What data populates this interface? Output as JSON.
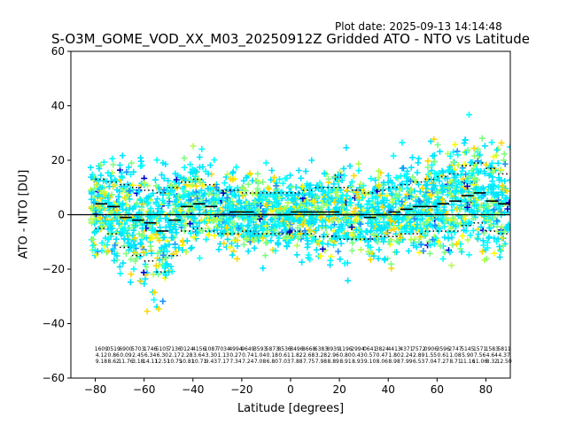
{
  "chart_data": {
    "type": "scatter",
    "plot_date": "Plot date: 2025-09-13 14:14:48",
    "title": "S-O3M_GOME_VOD_XX_M03_20250912Z Gridded ATO - NTO vs Latitude",
    "xlabel": "Latitude [degrees]",
    "ylabel": "ATO - NTO [DU]",
    "xlim": [
      -90,
      90
    ],
    "ylim": [
      -60,
      60
    ],
    "xticks": [
      -80,
      -60,
      -40,
      -20,
      0,
      20,
      40,
      60,
      80
    ],
    "yticks": [
      -60,
      -40,
      -20,
      0,
      20,
      40,
      60
    ],
    "reference_line_y": 0,
    "marker": "+",
    "point_colors": [
      "#00e5ff",
      "#00ffff",
      "#7fff7f",
      "#b2ff4c",
      "#ffd700",
      "#ffff00",
      "#1e90ff",
      "#0000cd"
    ],
    "lat_bins": [
      -80,
      -75,
      -70,
      -65,
      -60,
      -55,
      -50,
      -45,
      -40,
      -35,
      -30,
      -25,
      -20,
      -15,
      -10,
      -5,
      0,
      5,
      10,
      15,
      20,
      25,
      30,
      35,
      40,
      45,
      50,
      55,
      60,
      65,
      70,
      75,
      80,
      85,
      90
    ],
    "bin_mean": [
      4,
      3,
      -1,
      -2,
      -3,
      -6,
      -2,
      3,
      4,
      3,
      0,
      1,
      1,
      0,
      0,
      0,
      1,
      1,
      1,
      1,
      0,
      0,
      -1,
      0,
      1,
      2,
      3,
      3,
      4,
      5,
      7,
      8,
      5,
      4
    ],
    "bin_upper_sigma": [
      13,
      12,
      11,
      10,
      9,
      8,
      10,
      12,
      13,
      11,
      9,
      9,
      8,
      8,
      8,
      8,
      8,
      9,
      10,
      10,
      10,
      9,
      8,
      9,
      10,
      11,
      12,
      13,
      14,
      15,
      18,
      19,
      17,
      15
    ],
    "bin_lower_sigma": [
      -5,
      -7,
      -12,
      -15,
      -17,
      -21,
      -15,
      -6,
      -5,
      -6,
      -7,
      -7,
      -6,
      -7,
      -7,
      -7,
      -6,
      -7,
      -8,
      -8,
      -9,
      -9,
      -9,
      -8,
      -8,
      -7,
      -7,
      -6,
      -6,
      -6,
      -4,
      -3,
      -6,
      -7
    ],
    "bin_stat_labels": [
      [
        "1609",
        "4.12",
        "9.18"
      ],
      [
        "0519",
        "0.86",
        "8.62"
      ],
      [
        "6900",
        "0.09",
        "11.76"
      ],
      [
        "5703",
        "2.45",
        "3.18"
      ],
      [
        "1746",
        "6.34",
        "14.11"
      ],
      [
        "5105",
        "6.30",
        "12.51"
      ],
      [
        "7136",
        "2.17",
        "10.75"
      ],
      [
        "0124",
        "2.28",
        "10.81"
      ],
      [
        "4156",
        "3.64",
        "10.71"
      ],
      [
        "1087",
        "3.30",
        "9.43"
      ],
      [
        "7034",
        "1.13",
        "7.17"
      ],
      [
        "4994",
        "0.27",
        "7.34"
      ],
      [
        "9649",
        "0.74",
        "7.24"
      ],
      [
        "3593",
        "1.04",
        "7.08"
      ],
      [
        "5873",
        "0.18",
        "6.80"
      ],
      [
        "8536",
        "0.61",
        "7.03"
      ],
      [
        "8496",
        "1.82",
        "7.88"
      ],
      [
        "8668",
        "2.68",
        "7.75"
      ],
      [
        "6383",
        "3.28",
        "7.98"
      ],
      [
        "8939",
        "2.96",
        "8.89"
      ],
      [
        "1196",
        "0.80",
        "8.91"
      ],
      [
        "2994",
        "0.43",
        "8.93"
      ],
      [
        "0641",
        "0.57",
        "9.10"
      ],
      [
        "3824",
        "0.47",
        "8.06"
      ],
      [
        "4413",
        "1.80",
        "8.98"
      ],
      [
        "4371",
        "2.24",
        "7.99"
      ],
      [
        "7572",
        "2.89",
        "6.53"
      ],
      [
        "0906",
        "1.55",
        "7.04"
      ],
      [
        "3596",
        "0.61",
        "7.27"
      ],
      [
        "2747",
        "1.08",
        "8.71"
      ],
      [
        "5145",
        "5.90",
        "11.16"
      ],
      [
        "1571",
        "7.56",
        "11.06"
      ],
      [
        "1583",
        "4.64",
        "8.32"
      ],
      [
        "5811",
        "4.37",
        "12.50"
      ]
    ]
  }
}
